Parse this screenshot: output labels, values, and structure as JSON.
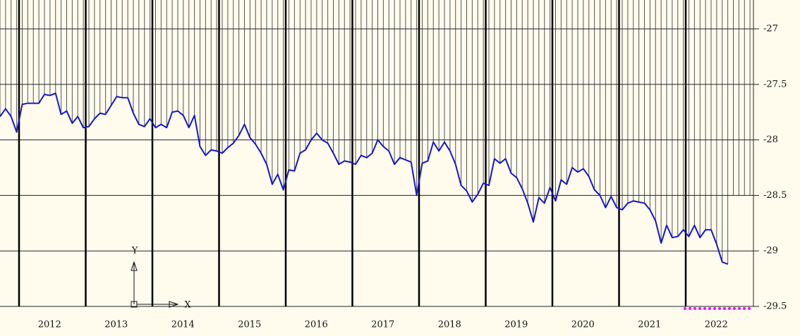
{
  "chart_data": {
    "type": "line",
    "values": [
      -27.79,
      -27.72,
      -27.79,
      -27.93,
      -27.68,
      -27.67,
      -27.67,
      -27.67,
      -27.59,
      -27.6,
      -27.58,
      -27.77,
      -27.74,
      -27.85,
      -27.79,
      -27.89,
      -27.88,
      -27.81,
      -27.76,
      -27.77,
      -27.69,
      -27.61,
      -27.62,
      -27.62,
      -27.76,
      -27.86,
      -27.88,
      -27.81,
      -27.89,
      -27.86,
      -27.89,
      -27.75,
      -27.74,
      -27.78,
      -27.89,
      -27.78,
      -28.06,
      -28.14,
      -28.09,
      -28.1,
      -28.12,
      -28.07,
      -28.03,
      -27.96,
      -27.86,
      -27.98,
      -28.04,
      -28.12,
      -28.22,
      -28.4,
      -28.31,
      -28.45,
      -28.27,
      -28.28,
      -28.12,
      -28.09,
      -28.0,
      -27.94,
      -28.0,
      -28.03,
      -28.12,
      -28.22,
      -28.19,
      -28.2,
      -28.22,
      -28.14,
      -28.16,
      -28.12,
      -28.0,
      -28.06,
      -28.1,
      -28.22,
      -28.16,
      -28.18,
      -28.2,
      -28.5,
      -28.21,
      -28.19,
      -28.02,
      -28.1,
      -28.02,
      -28.1,
      -28.22,
      -28.41,
      -28.46,
      -28.56,
      -28.49,
      -28.39,
      -28.41,
      -28.17,
      -28.21,
      -28.17,
      -28.3,
      -28.34,
      -28.44,
      -28.57,
      -28.74,
      -28.52,
      -28.57,
      -28.43,
      -28.55,
      -28.36,
      -28.4,
      -28.25,
      -28.29,
      -28.26,
      -28.33,
      -28.45,
      -28.5,
      -28.61,
      -28.51,
      -28.61,
      -28.63,
      -28.57,
      -28.55,
      -28.56,
      -28.57,
      -28.63,
      -28.73,
      -28.93,
      -28.77,
      -28.88,
      -28.87,
      -28.81,
      -28.87,
      -28.77,
      -28.88,
      -28.81,
      -28.81,
      -28.94,
      -29.1,
      -29.12
    ],
    "color": "#1616c8",
    "year_labels": [
      2012,
      2013,
      2014,
      2015,
      2016,
      2017,
      2018,
      2019,
      2020,
      2021,
      2022
    ],
    "ylim": [
      -29.5,
      -26.74
    ],
    "yticks": [
      -27,
      -27.5,
      -28,
      -28.5,
      -29,
      -29.5
    ],
    "grid": true
  },
  "ucs": {
    "y_label": "Y",
    "x_label": "X"
  }
}
